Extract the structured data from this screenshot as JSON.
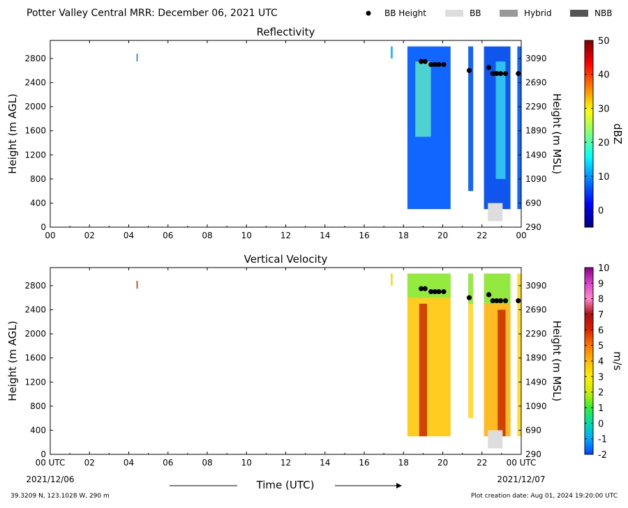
{
  "header": {
    "title": "Potter Valley Central MRR:  December 06, 2021 UTC",
    "legend": [
      {
        "label": "BB Height",
        "kind": "dot",
        "color": "#000000"
      },
      {
        "label": "BB",
        "kind": "swatch",
        "color": "#dddddd"
      },
      {
        "label": "Hybrid",
        "kind": "swatch",
        "color": "#999999"
      },
      {
        "label": "NBB",
        "kind": "swatch",
        "color": "#555555"
      }
    ]
  },
  "footer": {
    "location": "39.3209 N, 123.1028 W, 290 m",
    "creation": "Plot creation date: Aug 01, 2024 19:20:00 UTC",
    "time_label": "Time (UTC)",
    "start_date": "2021/12/06",
    "end_date": "2021/12/07"
  },
  "chart_data": [
    {
      "type": "heatmap",
      "title": "Reflectivity",
      "ylabel": "Height (m AGL)",
      "ylabel_right": "Height (m MSL)",
      "colorbar_label": "dBZ",
      "colorbar_ticks": [
        "50",
        "40",
        "30",
        "20",
        "10",
        "0"
      ],
      "colorbar_range": [
        -5,
        50
      ],
      "colorbar_colors": [
        "#00007f",
        "#0000ff",
        "#007fff",
        "#00ffff",
        "#7fff7f",
        "#ffff00",
        "#ff7f00",
        "#ff0000",
        "#7f0000"
      ],
      "xlim": [
        0,
        24
      ],
      "ylim": [
        0,
        3100
      ],
      "x_ticks": [
        "00",
        "02",
        "04",
        "06",
        "08",
        "10",
        "12",
        "14",
        "16",
        "18",
        "20",
        "22",
        "00"
      ],
      "y_ticks": [
        "0",
        "400",
        "800",
        "1200",
        "1600",
        "2000",
        "2400",
        "2800"
      ],
      "y_ticks_right": [
        "290",
        "690",
        "1090",
        "1490",
        "1890",
        "2290",
        "2690",
        "3090"
      ],
      "echo_bands": [
        {
          "x0": 4.4,
          "x1": 4.45,
          "bottom": 2750,
          "top": 2880,
          "color": "#1a66ff"
        },
        {
          "x0": 17.35,
          "x1": 17.45,
          "bottom": 2800,
          "top": 3000,
          "color": "#22b8ff"
        },
        {
          "x0": 18.2,
          "x1": 20.4,
          "bottom": 300,
          "top": 3000,
          "color": "#1166ff"
        },
        {
          "x0": 21.3,
          "x1": 21.55,
          "bottom": 600,
          "top": 3000,
          "color": "#1166ff"
        },
        {
          "x0": 22.1,
          "x1": 23.45,
          "bottom": 300,
          "top": 3000,
          "color": "#0f55ee"
        },
        {
          "x0": 23.8,
          "x1": 24.0,
          "bottom": 300,
          "top": 3000,
          "color": "#1166ff"
        }
      ],
      "core_bands": [
        {
          "x0": 18.6,
          "x1": 19.4,
          "bottom": 1500,
          "top": 2750,
          "color": "#55ddcc"
        },
        {
          "x0": 22.7,
          "x1": 23.2,
          "bottom": 800,
          "top": 2750,
          "color": "#33ccee"
        }
      ],
      "bb_height": {
        "x": [
          18.9,
          19.1,
          19.4,
          19.6,
          19.8,
          20.05,
          21.35,
          22.35,
          22.55,
          22.75,
          22.95,
          23.2,
          23.85
        ],
        "y": [
          2750,
          2750,
          2700,
          2700,
          2700,
          2700,
          2600,
          2650,
          2550,
          2550,
          2550,
          2550,
          2550
        ]
      },
      "bb_flags": [
        {
          "x0": 22.3,
          "x1": 23.05,
          "kind": "BB"
        }
      ]
    },
    {
      "type": "heatmap",
      "title": "Vertical Velocity",
      "ylabel": "Height (m AGL)",
      "ylabel_right": "Height (m MSL)",
      "xlabel": "Time (UTC)",
      "colorbar_label": "m/s",
      "colorbar_ticks": [
        "10",
        "9",
        "8",
        "7",
        "6",
        "5",
        "4",
        "3",
        "2",
        "1",
        "0",
        "-1",
        "-2"
      ],
      "colorbar_range": [
        -2,
        10
      ],
      "colorbar_colors": [
        "#0044ff",
        "#00aaff",
        "#00ddaa",
        "#33ee33",
        "#ccee00",
        "#ffee00",
        "#ffbb00",
        "#ff7700",
        "#dd2200",
        "#aa1111",
        "#ff88cc",
        "#dd44cc",
        "#880088"
      ],
      "xlim": [
        0,
        24
      ],
      "ylim": [
        0,
        3100
      ],
      "x_ticks": [
        "00 UTC",
        "02",
        "04",
        "06",
        "08",
        "10",
        "12",
        "14",
        "16",
        "18",
        "20",
        "22",
        "00 UTC"
      ],
      "y_ticks": [
        "0",
        "400",
        "800",
        "1200",
        "1600",
        "2000",
        "2400",
        "2800"
      ],
      "y_ticks_right": [
        "290",
        "690",
        "1090",
        "1490",
        "1890",
        "2290",
        "2690",
        "3090"
      ],
      "echo_bands": [
        {
          "x0": 4.4,
          "x1": 4.45,
          "bottom": 2750,
          "top": 2880,
          "color": "#cc2200"
        },
        {
          "x0": 17.35,
          "x1": 17.45,
          "bottom": 2800,
          "top": 3000,
          "color": "#eedd33"
        },
        {
          "x0": 18.2,
          "x1": 20.4,
          "bottom": 300,
          "top": 3000,
          "color": "#ffcc22"
        },
        {
          "x0": 21.3,
          "x1": 21.55,
          "bottom": 600,
          "top": 3000,
          "color": "#ffdd33"
        },
        {
          "x0": 22.1,
          "x1": 23.45,
          "bottom": 300,
          "top": 3000,
          "color": "#ffbb22"
        },
        {
          "x0": 23.8,
          "x1": 24.0,
          "bottom": 300,
          "top": 3000,
          "color": "#ffdd33"
        }
      ],
      "core_bands": [
        {
          "x0": 18.2,
          "x1": 20.4,
          "bottom": 2600,
          "top": 3000,
          "color": "#88ee44"
        },
        {
          "x0": 21.3,
          "x1": 21.55,
          "bottom": 2500,
          "top": 3000,
          "color": "#88ee44"
        },
        {
          "x0": 22.1,
          "x1": 23.45,
          "bottom": 2500,
          "top": 3000,
          "color": "#88ee44"
        },
        {
          "x0": 18.8,
          "x1": 19.2,
          "bottom": 300,
          "top": 2500,
          "color": "#cc3300"
        },
        {
          "x0": 22.8,
          "x1": 23.2,
          "bottom": 300,
          "top": 2400,
          "color": "#cc3300"
        }
      ],
      "bb_height": {
        "x": [
          18.9,
          19.1,
          19.4,
          19.6,
          19.8,
          20.05,
          21.35,
          22.35,
          22.55,
          22.75,
          22.95,
          23.2,
          23.85
        ],
        "y": [
          2750,
          2750,
          2700,
          2700,
          2700,
          2700,
          2600,
          2650,
          2550,
          2550,
          2550,
          2550,
          2550
        ]
      },
      "bb_flags": [
        {
          "x0": 22.3,
          "x1": 23.05,
          "kind": "BB"
        }
      ]
    }
  ]
}
